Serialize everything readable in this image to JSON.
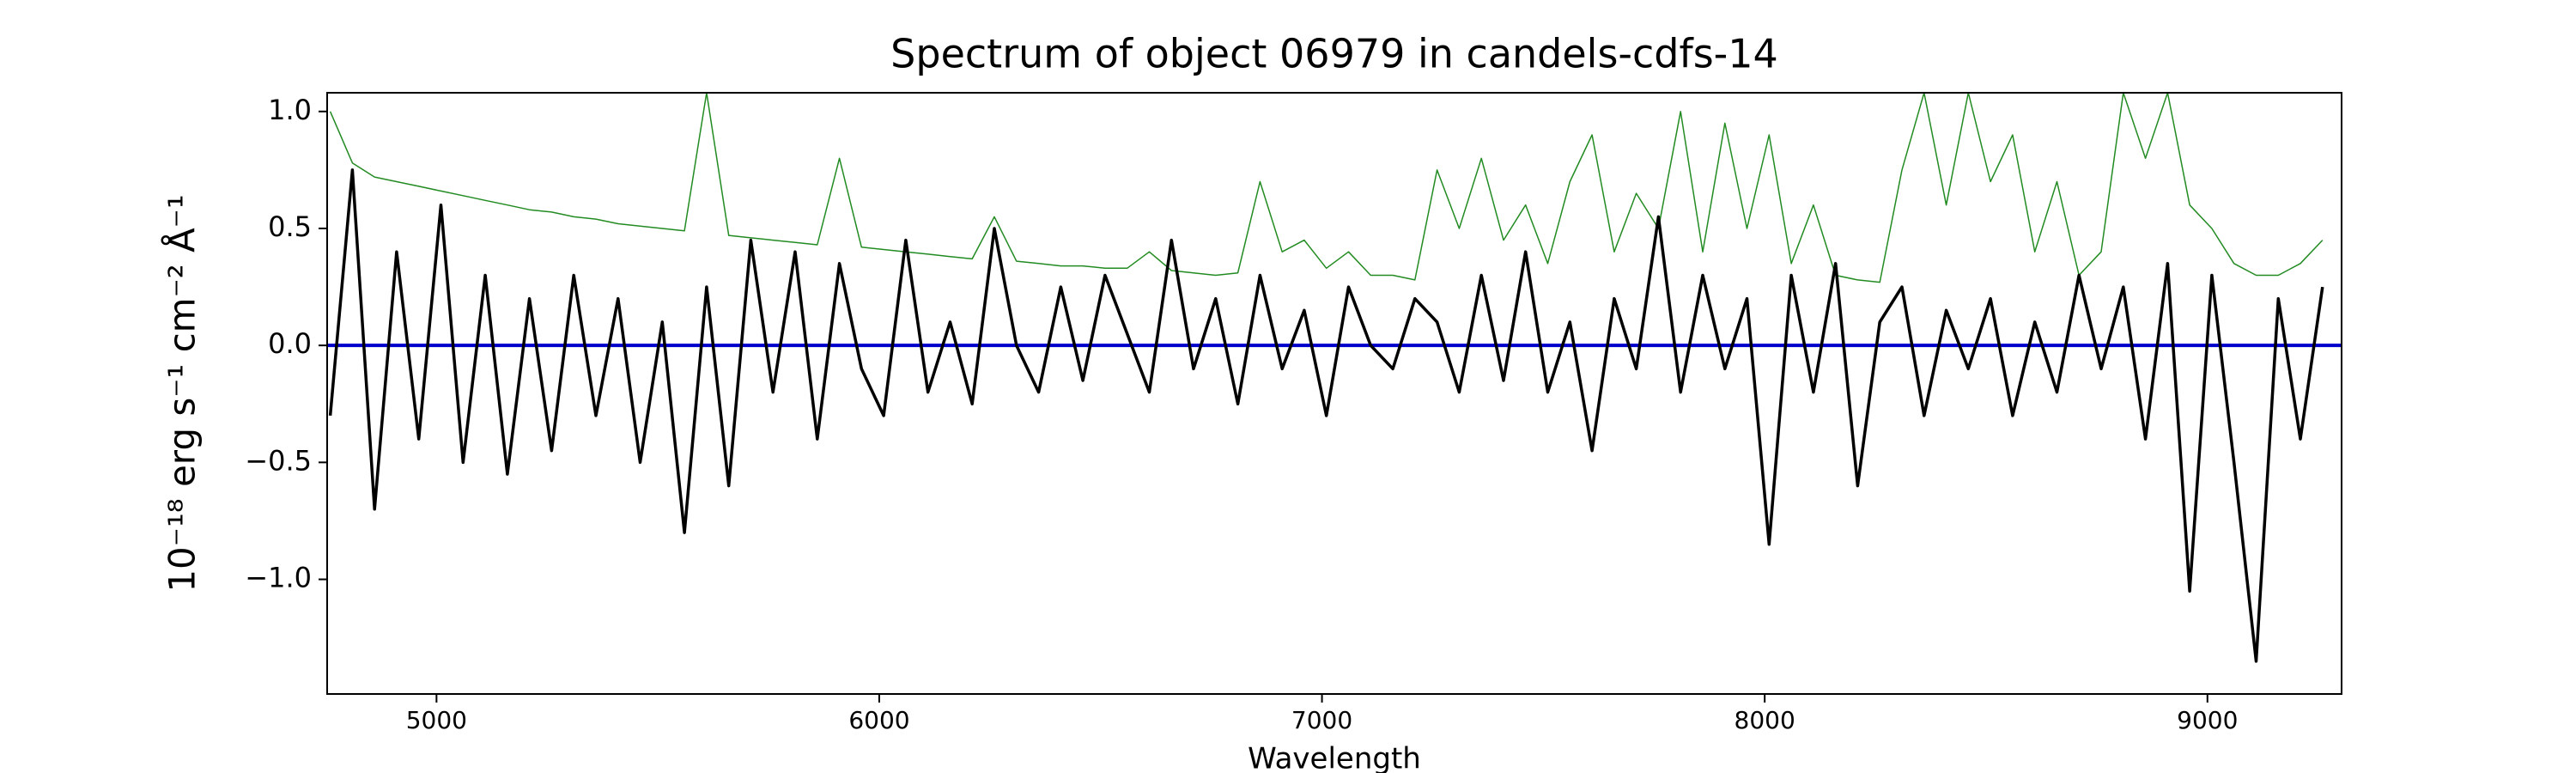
{
  "chart_data": {
    "type": "line",
    "title": "Spectrum of object 06979 in candels-cdfs-14",
    "xlabel": "Wavelength",
    "ylabel": "10⁻¹⁸ erg s⁻¹ cm⁻² Å⁻¹",
    "xlim": [
      4753,
      9303
    ],
    "ylim": [
      -1.49,
      1.08
    ],
    "xticks": [
      5000,
      6000,
      7000,
      8000,
      9000
    ],
    "yticks": [
      {
        "value": -1.0,
        "label": "−1.0"
      },
      {
        "value": -0.5,
        "label": "−0.5"
      },
      {
        "value": 0,
        "label": "0.0"
      },
      {
        "value": 0.5,
        "label": "0.5"
      },
      {
        "value": 1.0,
        "label": "1.0"
      }
    ],
    "x": [
      4760,
      4810,
      4860,
      4910,
      4960,
      5010,
      5060,
      5110,
      5160,
      5210,
      5260,
      5310,
      5360,
      5410,
      5460,
      5510,
      5560,
      5610,
      5660,
      5710,
      5760,
      5810,
      5860,
      5910,
      5960,
      6010,
      6060,
      6110,
      6160,
      6210,
      6260,
      6310,
      6360,
      6410,
      6460,
      6510,
      6560,
      6610,
      6660,
      6710,
      6760,
      6810,
      6860,
      6910,
      6960,
      7010,
      7060,
      7110,
      7160,
      7210,
      7260,
      7310,
      7360,
      7410,
      7460,
      7510,
      7560,
      7610,
      7660,
      7710,
      7760,
      7810,
      7860,
      7910,
      7960,
      8010,
      8060,
      8110,
      8160,
      8210,
      8260,
      8310,
      8360,
      8410,
      8460,
      8510,
      8560,
      8610,
      8660,
      8710,
      8760,
      8810,
      8860,
      8910,
      8960,
      9010,
      9060,
      9110,
      9160,
      9210,
      9260
    ],
    "series": [
      {
        "color": "#228b22",
        "values": [
          1.0,
          0.78,
          0.72,
          0.7,
          0.68,
          0.66,
          0.64,
          0.62,
          0.6,
          0.58,
          0.57,
          0.55,
          0.54,
          0.52,
          0.51,
          0.5,
          0.49,
          1.08,
          0.47,
          0.46,
          0.45,
          0.44,
          0.43,
          0.8,
          0.42,
          0.41,
          0.4,
          0.39,
          0.38,
          0.37,
          0.55,
          0.36,
          0.35,
          0.34,
          0.34,
          0.33,
          0.33,
          0.4,
          0.32,
          0.31,
          0.3,
          0.31,
          0.7,
          0.4,
          0.45,
          0.33,
          0.4,
          0.3,
          0.3,
          0.28,
          0.75,
          0.5,
          0.8,
          0.45,
          0.6,
          0.35,
          0.7,
          0.9,
          0.4,
          0.65,
          0.5,
          1.0,
          0.4,
          0.95,
          0.5,
          0.9,
          0.35,
          0.6,
          0.3,
          0.28,
          0.27,
          0.75,
          1.08,
          0.6,
          1.08,
          0.7,
          0.9,
          0.4,
          0.7,
          0.3,
          0.4,
          1.08,
          0.8,
          1.08,
          0.6,
          0.5,
          0.35,
          0.3,
          0.3,
          0.35,
          0.45
        ]
      },
      {
        "color": "#000000",
        "values": [
          -0.3,
          0.75,
          -0.7,
          0.4,
          -0.4,
          0.6,
          -0.5,
          0.3,
          -0.55,
          0.2,
          -0.45,
          0.3,
          -0.3,
          0.2,
          -0.5,
          0.1,
          -0.8,
          0.25,
          -0.6,
          0.45,
          -0.2,
          0.4,
          -0.4,
          0.35,
          -0.1,
          -0.3,
          0.45,
          -0.2,
          0.1,
          -0.25,
          0.5,
          0.0,
          -0.2,
          0.25,
          -0.15,
          0.3,
          0.05,
          -0.2,
          0.45,
          -0.1,
          0.2,
          -0.25,
          0.3,
          -0.1,
          0.15,
          -0.3,
          0.25,
          0.0,
          -0.1,
          0.2,
          0.1,
          -0.2,
          0.3,
          -0.15,
          0.4,
          -0.2,
          0.1,
          -0.45,
          0.2,
          -0.1,
          0.55,
          -0.2,
          0.3,
          -0.1,
          0.2,
          -0.85,
          0.3,
          -0.2,
          0.35,
          -0.6,
          0.1,
          0.25,
          -0.3,
          0.15,
          -0.1,
          0.2,
          -0.3,
          0.1,
          -0.2,
          0.3,
          -0.1,
          0.25,
          -0.4,
          0.35,
          -1.05,
          0.3,
          -0.5,
          -1.35,
          0.2,
          -0.4,
          0.25
        ]
      }
    ],
    "hline": {
      "value": 0,
      "color": "#0000cc"
    }
  }
}
